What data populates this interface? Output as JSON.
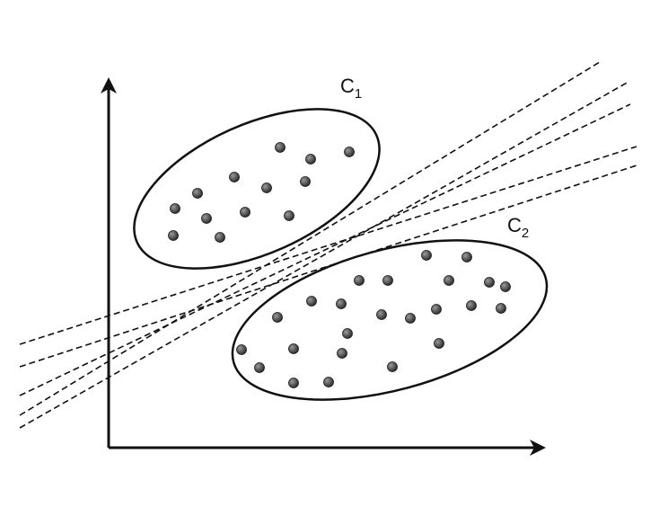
{
  "clusters": [
    {
      "letter": "C",
      "subscript": "1"
    },
    {
      "letter": "C",
      "subscript": "2"
    }
  ],
  "colors": {
    "background": "#ffffff",
    "stroke": "#111111",
    "point_dark": "#2f2f2f",
    "point_light": "#9a9a9a"
  }
}
